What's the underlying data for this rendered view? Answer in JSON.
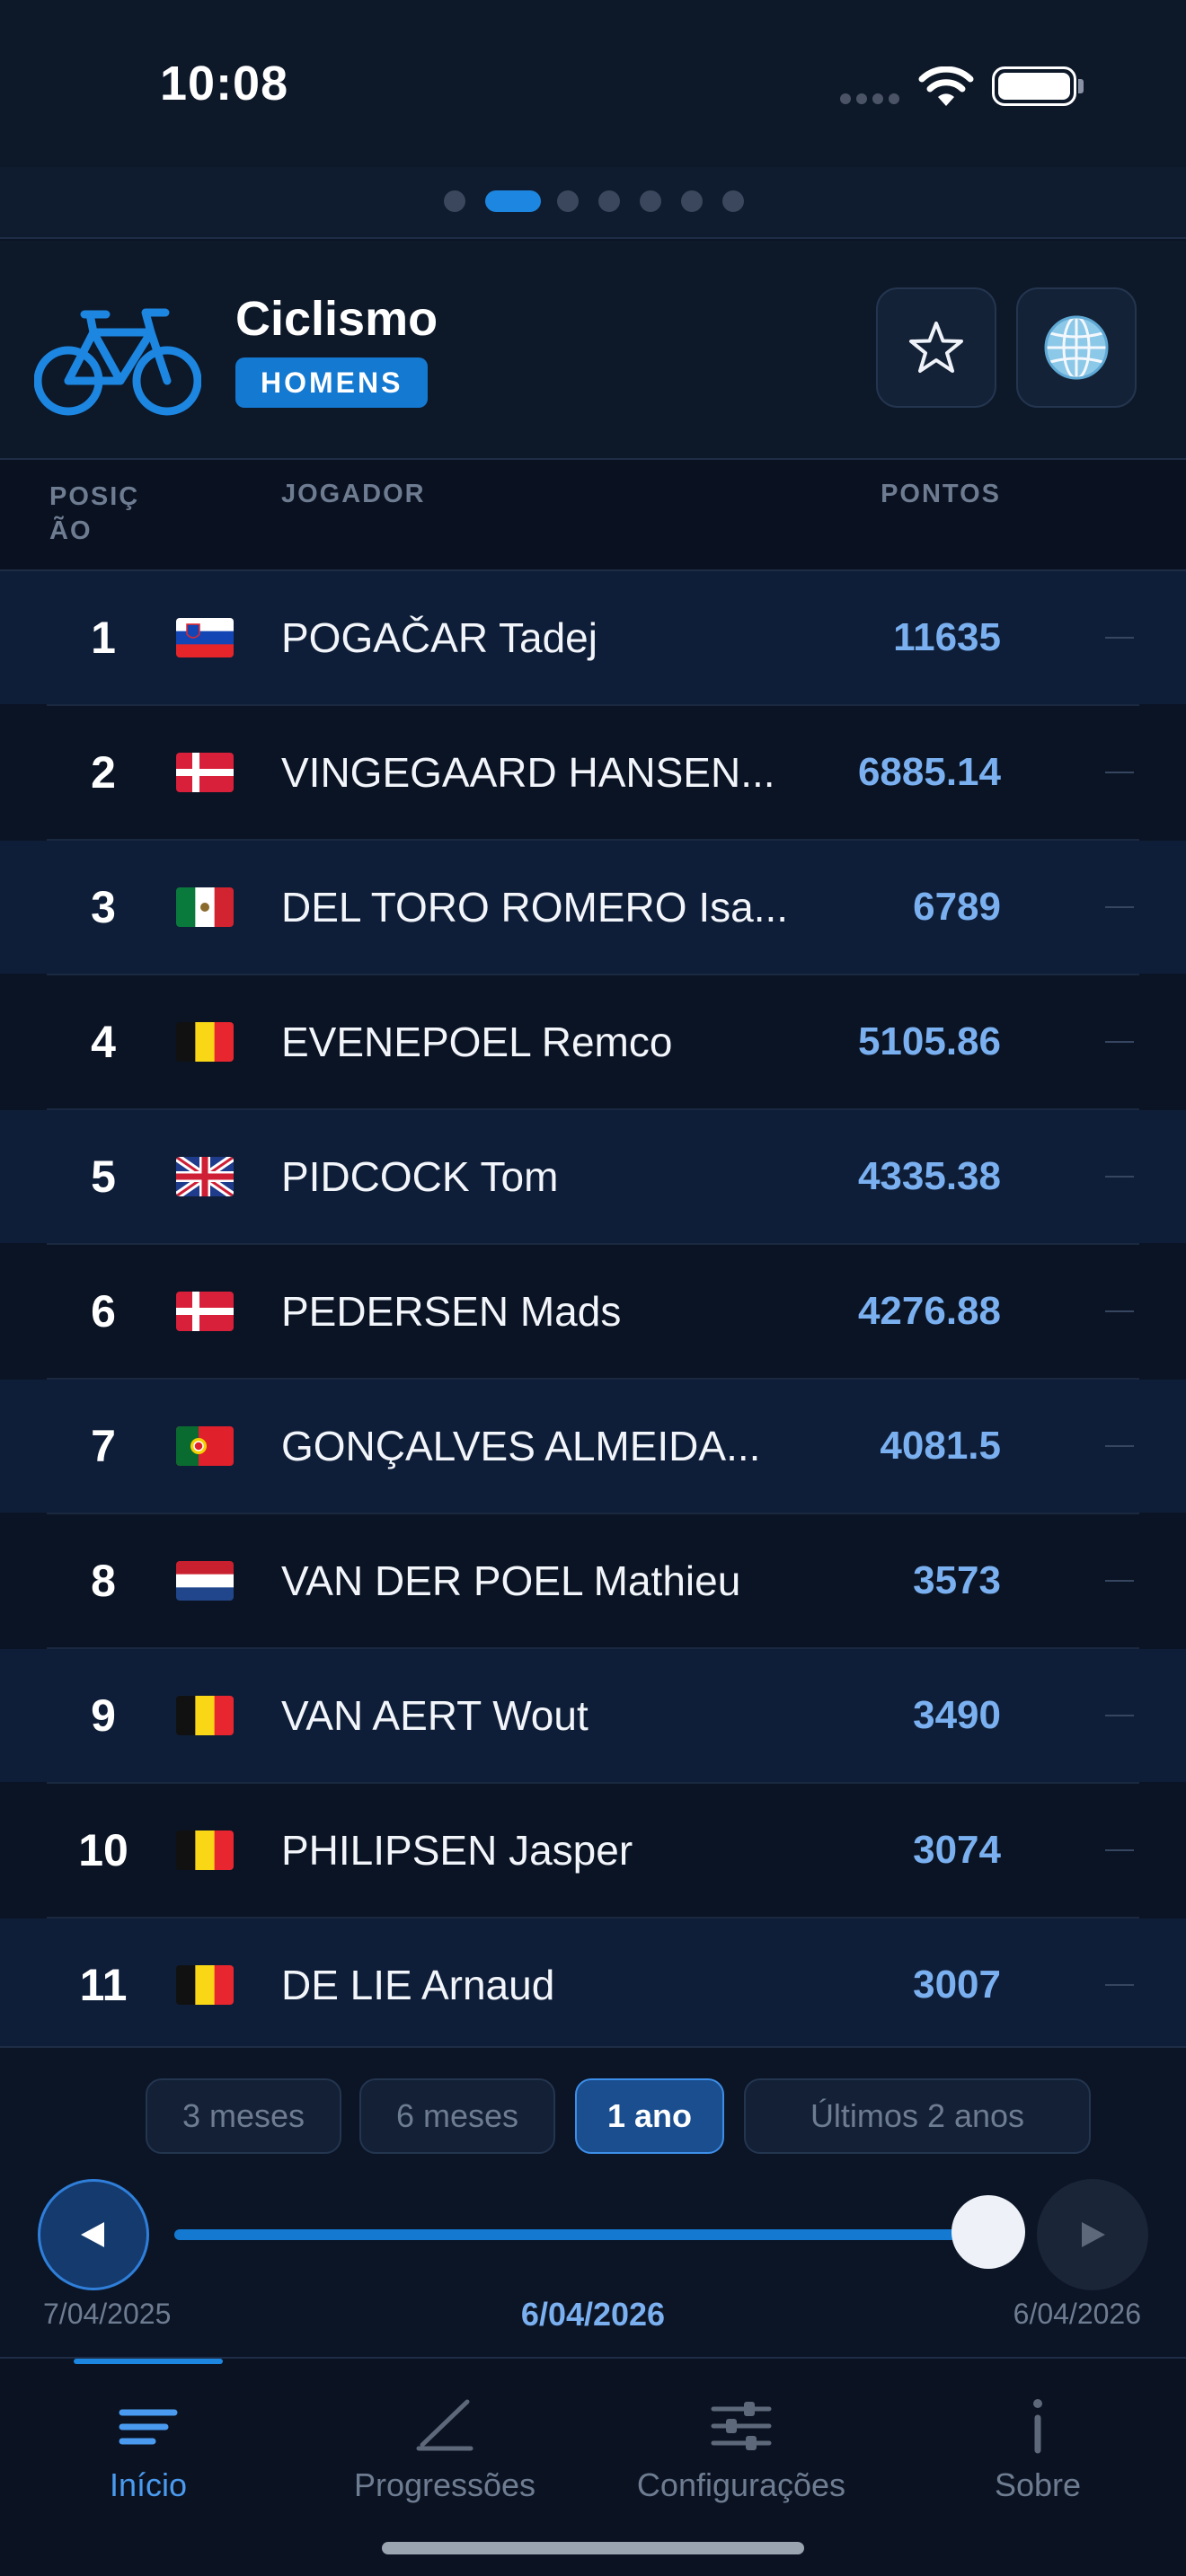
{
  "status_bar": {
    "time": "10:08"
  },
  "pager": {
    "count": 7,
    "active_index": 1
  },
  "header": {
    "icon": "bicycle-icon",
    "title": "Ciclismo",
    "badge": "HOMENS",
    "star_icon": "star-icon",
    "globe_icon": "globe-icon"
  },
  "table": {
    "columns": {
      "position": "POSIÇ ÃO",
      "player": "JOGADOR",
      "points": "PONTOS"
    },
    "rows": [
      {
        "rank": "1",
        "country": "Slovenia",
        "flag": "slovenia",
        "name": "POGAČAR Tadej",
        "points": "11635",
        "trend": "—"
      },
      {
        "rank": "2",
        "country": "Denmark",
        "flag": "denmark",
        "name": "VINGEGAARD HANSEN...",
        "points": "6885.14",
        "trend": "—"
      },
      {
        "rank": "3",
        "country": "Mexico",
        "flag": "mexico",
        "name": "DEL TORO ROMERO Isa...",
        "points": "6789",
        "trend": "—"
      },
      {
        "rank": "4",
        "country": "Belgium",
        "flag": "belgium",
        "name": "EVENEPOEL Remco",
        "points": "5105.86",
        "trend": "—"
      },
      {
        "rank": "5",
        "country": "United Kingdom",
        "flag": "uk",
        "name": "PIDCOCK Tom",
        "points": "4335.38",
        "trend": "—"
      },
      {
        "rank": "6",
        "country": "Denmark",
        "flag": "denmark",
        "name": "PEDERSEN Mads",
        "points": "4276.88",
        "trend": "—"
      },
      {
        "rank": "7",
        "country": "Portugal",
        "flag": "portugal",
        "name": "GONÇALVES ALMEIDA...",
        "points": "4081.5",
        "trend": "—"
      },
      {
        "rank": "8",
        "country": "Netherlands",
        "flag": "netherlands",
        "name": "VAN DER POEL Mathieu",
        "points": "3573",
        "trend": "—"
      },
      {
        "rank": "9",
        "country": "Belgium",
        "flag": "belgium",
        "name": "VAN AERT Wout",
        "points": "3490",
        "trend": "—"
      },
      {
        "rank": "10",
        "country": "Belgium",
        "flag": "belgium",
        "name": "PHILIPSEN Jasper",
        "points": "3074",
        "trend": "—"
      },
      {
        "rank": "11",
        "country": "Belgium",
        "flag": "belgium",
        "name": "DE LIE Arnaud",
        "points": "3007",
        "trend": "—"
      }
    ]
  },
  "range": {
    "options": [
      "3 meses",
      "6 meses",
      "1 ano",
      "Últimos 2 anos"
    ],
    "selected": "1 ano"
  },
  "timeline": {
    "start_date": "7/04/2025",
    "current_date": "6/04/2026",
    "end_date": "6/04/2026",
    "progress": 1.0,
    "prev_icon": "play-left-icon",
    "next_icon": "play-right-icon"
  },
  "tabs": [
    {
      "label": "Início",
      "icon": "list-icon",
      "active": true
    },
    {
      "label": "Progressões",
      "icon": "chart-line-icon",
      "active": false
    },
    {
      "label": "Configurações",
      "icon": "sliders-icon",
      "active": false
    },
    {
      "label": "Sobre",
      "icon": "info-icon",
      "active": false
    }
  ],
  "colors": {
    "background": "#0b1424",
    "accent": "#1c86e0",
    "points": "#7ab0f0",
    "muted": "#6e7c92"
  }
}
